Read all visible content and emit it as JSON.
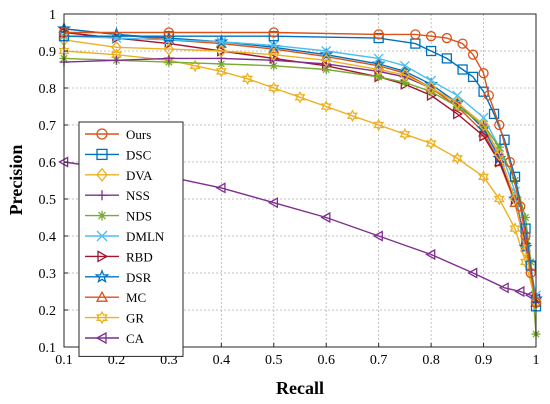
{
  "chart_data": {
    "type": "line",
    "title": "",
    "xlabel": "Recall",
    "ylabel": "Precision",
    "xlim": [
      0.1,
      1.0
    ],
    "ylim": [
      0.1,
      1.0
    ],
    "xticks": [
      0.1,
      0.2,
      0.3,
      0.4,
      0.5,
      0.6,
      0.7,
      0.8,
      0.9,
      1.0
    ],
    "xtick_labels": [
      "0.1",
      "0.2",
      "0.3",
      "0.4",
      "0.5",
      "0.6",
      "0.7",
      "0.8",
      "0.9",
      "1"
    ],
    "yticks": [
      0.1,
      0.2,
      0.3,
      0.4,
      0.5,
      0.6,
      0.7,
      0.8,
      0.9,
      1.0
    ],
    "ytick_labels": [
      "0.1",
      "0.2",
      "0.3",
      "0.4",
      "0.5",
      "0.6",
      "0.7",
      "0.8",
      "0.9",
      "1"
    ],
    "grid": true,
    "legend_position": "center-left",
    "series": [
      {
        "name": "Ours",
        "color": "#D95319",
        "marker": "circle",
        "x": [
          0.1,
          0.3,
          0.5,
          0.7,
          0.77,
          0.8,
          0.83,
          0.86,
          0.88,
          0.9,
          0.91,
          0.93,
          0.95,
          0.97,
          0.98,
          0.99,
          1.0
        ],
        "y": [
          0.95,
          0.95,
          0.95,
          0.945,
          0.945,
          0.94,
          0.935,
          0.92,
          0.89,
          0.84,
          0.78,
          0.7,
          0.6,
          0.48,
          0.4,
          0.3,
          0.22
        ]
      },
      {
        "name": "DSC",
        "color": "#0072BD",
        "marker": "square",
        "x": [
          0.1,
          0.3,
          0.5,
          0.7,
          0.77,
          0.8,
          0.83,
          0.86,
          0.88,
          0.9,
          0.92,
          0.94,
          0.96,
          0.98,
          0.99,
          1.0
        ],
        "y": [
          0.94,
          0.94,
          0.94,
          0.935,
          0.92,
          0.9,
          0.88,
          0.85,
          0.83,
          0.79,
          0.73,
          0.66,
          0.56,
          0.42,
          0.32,
          0.21
        ]
      },
      {
        "name": "DVA",
        "color": "#EDB120",
        "marker": "diamond",
        "x": [
          0.1,
          0.2,
          0.3,
          0.4,
          0.5,
          0.6,
          0.7,
          0.75,
          0.8,
          0.85,
          0.9,
          0.93,
          0.96,
          0.98,
          1.0
        ],
        "y": [
          0.93,
          0.91,
          0.905,
          0.9,
          0.89,
          0.875,
          0.85,
          0.835,
          0.8,
          0.76,
          0.7,
          0.62,
          0.5,
          0.36,
          0.22
        ]
      },
      {
        "name": "NSS",
        "color": "#7E2F8E",
        "marker": "plus",
        "x": [
          0.1,
          0.2,
          0.3,
          0.4,
          0.5,
          0.6,
          0.7,
          0.75,
          0.8,
          0.85,
          0.9,
          0.93,
          0.96,
          0.98,
          1.0
        ],
        "y": [
          0.87,
          0.875,
          0.88,
          0.88,
          0.875,
          0.865,
          0.845,
          0.83,
          0.8,
          0.76,
          0.7,
          0.62,
          0.5,
          0.38,
          0.22
        ]
      },
      {
        "name": "NDS",
        "color": "#77AC30",
        "marker": "asterisk",
        "x": [
          0.1,
          0.2,
          0.3,
          0.4,
          0.5,
          0.6,
          0.7,
          0.75,
          0.8,
          0.85,
          0.9,
          0.93,
          0.96,
          0.98,
          0.99,
          1.0
        ],
        "y": [
          0.88,
          0.875,
          0.87,
          0.865,
          0.86,
          0.85,
          0.83,
          0.815,
          0.79,
          0.75,
          0.7,
          0.64,
          0.55,
          0.45,
          0.33,
          0.135
        ]
      },
      {
        "name": "DMLN",
        "color": "#4DBEEE",
        "marker": "cross",
        "x": [
          0.1,
          0.2,
          0.3,
          0.4,
          0.5,
          0.6,
          0.7,
          0.75,
          0.8,
          0.85,
          0.9,
          0.93,
          0.96,
          0.98,
          1.0
        ],
        "y": [
          0.94,
          0.935,
          0.93,
          0.925,
          0.915,
          0.9,
          0.88,
          0.86,
          0.82,
          0.78,
          0.72,
          0.64,
          0.52,
          0.38,
          0.24
        ]
      },
      {
        "name": "RBD",
        "color": "#A2142F",
        "marker": "triangle-right",
        "x": [
          0.1,
          0.2,
          0.3,
          0.4,
          0.5,
          0.6,
          0.7,
          0.75,
          0.8,
          0.85,
          0.9,
          0.93,
          0.96,
          0.98,
          1.0
        ],
        "y": [
          0.95,
          0.935,
          0.92,
          0.9,
          0.88,
          0.86,
          0.83,
          0.81,
          0.78,
          0.73,
          0.67,
          0.6,
          0.5,
          0.38,
          0.23
        ]
      },
      {
        "name": "DSR",
        "color": "#0072BD",
        "marker": "star",
        "x": [
          0.1,
          0.2,
          0.3,
          0.4,
          0.5,
          0.6,
          0.7,
          0.75,
          0.8,
          0.85,
          0.9,
          0.93,
          0.96,
          0.98,
          1.0
        ],
        "y": [
          0.96,
          0.945,
          0.935,
          0.925,
          0.91,
          0.89,
          0.865,
          0.845,
          0.81,
          0.76,
          0.69,
          0.61,
          0.5,
          0.37,
          0.23
        ]
      },
      {
        "name": "MC",
        "color": "#D95319",
        "marker": "triangle-up",
        "x": [
          0.1,
          0.2,
          0.3,
          0.4,
          0.5,
          0.6,
          0.7,
          0.75,
          0.8,
          0.85,
          0.9,
          0.93,
          0.96,
          0.98,
          1.0
        ],
        "y": [
          0.96,
          0.945,
          0.93,
          0.92,
          0.905,
          0.885,
          0.86,
          0.84,
          0.8,
          0.75,
          0.68,
          0.6,
          0.49,
          0.37,
          0.22
        ]
      },
      {
        "name": "GR",
        "color": "#EDB120",
        "marker": "hexagram",
        "x": [
          0.1,
          0.2,
          0.3,
          0.35,
          0.4,
          0.45,
          0.5,
          0.55,
          0.6,
          0.65,
          0.7,
          0.75,
          0.8,
          0.85,
          0.9,
          0.93,
          0.96,
          0.98,
          1.0
        ],
        "y": [
          0.9,
          0.89,
          0.875,
          0.86,
          0.845,
          0.825,
          0.8,
          0.775,
          0.75,
          0.725,
          0.7,
          0.675,
          0.65,
          0.61,
          0.56,
          0.5,
          0.42,
          0.33,
          0.22
        ]
      },
      {
        "name": "CA",
        "color": "#7E2F8E",
        "marker": "triangle-left",
        "x": [
          0.1,
          0.2,
          0.3,
          0.4,
          0.5,
          0.6,
          0.7,
          0.8,
          0.88,
          0.94,
          0.97,
          0.99,
          1.0
        ],
        "y": [
          0.6,
          0.58,
          0.56,
          0.53,
          0.49,
          0.45,
          0.4,
          0.35,
          0.3,
          0.26,
          0.25,
          0.24,
          0.23
        ]
      }
    ]
  }
}
